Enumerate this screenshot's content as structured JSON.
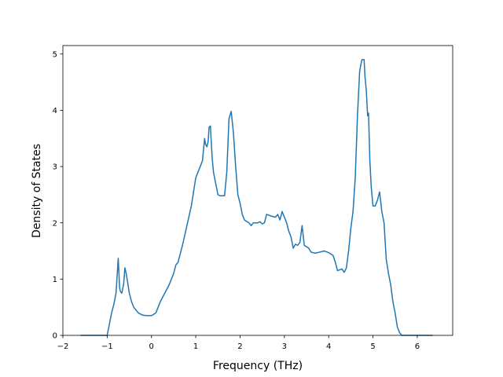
{
  "chart_data": {
    "type": "line",
    "title": "",
    "xlabel": "Frequency (THz)",
    "ylabel": "Density of States",
    "xlim": [
      -2.0,
      6.8
    ],
    "ylim": [
      0,
      5.15
    ],
    "xticks": [
      -2,
      -1,
      0,
      1,
      2,
      3,
      4,
      5,
      6
    ],
    "yticks": [
      0,
      1,
      2,
      3,
      4,
      5
    ],
    "grid": false,
    "legend": "none",
    "line_color": "#1f77b4",
    "series": [
      {
        "x": [
          -1.6,
          -1.2,
          -1.0,
          -0.95,
          -0.9,
          -0.85,
          -0.8,
          -0.75,
          -0.72,
          -0.7,
          -0.67,
          -0.63,
          -0.6,
          -0.57,
          -0.54,
          -0.5,
          -0.45,
          -0.4,
          -0.35,
          -0.3,
          -0.25,
          -0.2,
          -0.1,
          0.0,
          0.1,
          0.15,
          0.2,
          0.3,
          0.4,
          0.5,
          0.55,
          0.6,
          0.65,
          0.7,
          0.8,
          0.9,
          0.95,
          1.0,
          1.05,
          1.1,
          1.15,
          1.2,
          1.22,
          1.25,
          1.28,
          1.3,
          1.33,
          1.37,
          1.4,
          1.45,
          1.5,
          1.55,
          1.65,
          1.7,
          1.75,
          1.8,
          1.85,
          1.9,
          1.95,
          2.0,
          2.05,
          2.1,
          2.2,
          2.25,
          2.3,
          2.4,
          2.45,
          2.5,
          2.55,
          2.6,
          2.7,
          2.8,
          2.85,
          2.9,
          2.95,
          3.0,
          3.05,
          3.1,
          3.15,
          3.2,
          3.25,
          3.3,
          3.35,
          3.4,
          3.45,
          3.55,
          3.6,
          3.7,
          3.8,
          3.9,
          4.0,
          4.1,
          4.15,
          4.2,
          4.3,
          4.35,
          4.4,
          4.45,
          4.5,
          4.55,
          4.6,
          4.65,
          4.7,
          4.75,
          4.8,
          4.82,
          4.85,
          4.88,
          4.9,
          4.93,
          4.96,
          5.0,
          5.05,
          5.1,
          5.15,
          5.2,
          5.25,
          5.3,
          5.35,
          5.4,
          5.45,
          5.5,
          5.55,
          5.6,
          5.65,
          5.7,
          5.8,
          6.0,
          6.35
        ],
        "y": [
          0.0,
          0.0,
          0.0,
          0.2,
          0.4,
          0.55,
          0.75,
          1.37,
          0.85,
          0.78,
          0.75,
          0.9,
          1.2,
          1.1,
          0.95,
          0.75,
          0.6,
          0.5,
          0.45,
          0.4,
          0.38,
          0.36,
          0.35,
          0.35,
          0.4,
          0.5,
          0.6,
          0.75,
          0.9,
          1.1,
          1.25,
          1.3,
          1.45,
          1.6,
          1.95,
          2.3,
          2.55,
          2.8,
          2.9,
          3.0,
          3.1,
          3.5,
          3.4,
          3.35,
          3.45,
          3.7,
          3.72,
          3.15,
          2.9,
          2.7,
          2.5,
          2.48,
          2.48,
          2.9,
          3.85,
          3.98,
          3.6,
          3.0,
          2.5,
          2.35,
          2.15,
          2.05,
          2.0,
          1.95,
          2.0,
          2.0,
          2.02,
          1.98,
          2.0,
          2.15,
          2.12,
          2.1,
          2.15,
          2.05,
          2.2,
          2.1,
          2.0,
          1.85,
          1.75,
          1.55,
          1.62,
          1.6,
          1.65,
          1.95,
          1.6,
          1.55,
          1.48,
          1.46,
          1.48,
          1.5,
          1.47,
          1.42,
          1.3,
          1.15,
          1.18,
          1.12,
          1.2,
          1.5,
          1.9,
          2.2,
          2.8,
          3.9,
          4.7,
          4.9,
          4.9,
          4.6,
          4.35,
          3.9,
          3.95,
          3.1,
          2.65,
          2.3,
          2.3,
          2.4,
          2.55,
          2.2,
          2.0,
          1.35,
          1.1,
          0.9,
          0.6,
          0.4,
          0.15,
          0.05,
          0.0,
          0.0,
          0.0,
          0.0,
          0.0
        ]
      }
    ]
  }
}
